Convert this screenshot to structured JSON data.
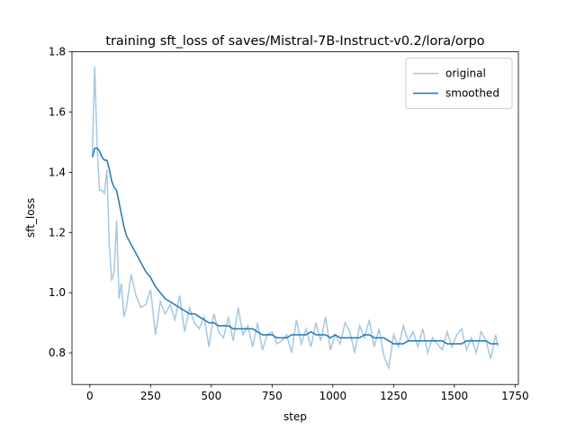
{
  "chart_data": {
    "type": "line",
    "title": "training sft_loss of saves/Mistral-7B-Instruct-v0.2/lora/orpo",
    "x_label": "step",
    "y_label": "sft_loss",
    "x": [
      10,
      20,
      30,
      40,
      50,
      60,
      70,
      80,
      90,
      100,
      110,
      120,
      130,
      140,
      150,
      170,
      190,
      210,
      230,
      250,
      270,
      290,
      310,
      330,
      350,
      370,
      390,
      410,
      430,
      450,
      470,
      490,
      510,
      530,
      550,
      570,
      590,
      610,
      630,
      650,
      670,
      690,
      710,
      730,
      750,
      770,
      790,
      810,
      830,
      850,
      870,
      890,
      910,
      930,
      950,
      970,
      990,
      1010,
      1030,
      1050,
      1070,
      1090,
      1110,
      1130,
      1150,
      1170,
      1190,
      1210,
      1230,
      1250,
      1270,
      1290,
      1310,
      1330,
      1350,
      1370,
      1390,
      1410,
      1430,
      1450,
      1470,
      1490,
      1510,
      1530,
      1550,
      1570,
      1590,
      1610,
      1630,
      1650,
      1670,
      1680
    ],
    "series": [
      {
        "name": "original",
        "color": "#a5c8e1",
        "values": [
          1.46,
          1.75,
          1.48,
          1.34,
          1.34,
          1.33,
          1.41,
          1.16,
          1.04,
          1.07,
          1.24,
          0.98,
          1.03,
          0.92,
          0.95,
          1.06,
          0.99,
          0.95,
          0.96,
          1.01,
          0.86,
          0.97,
          0.93,
          0.96,
          0.91,
          0.99,
          0.87,
          0.95,
          0.9,
          0.88,
          0.92,
          0.82,
          0.93,
          0.87,
          0.85,
          0.92,
          0.84,
          0.95,
          0.86,
          0.89,
          0.82,
          0.9,
          0.81,
          0.86,
          0.87,
          0.83,
          0.84,
          0.86,
          0.8,
          0.91,
          0.83,
          0.88,
          0.82,
          0.9,
          0.84,
          0.92,
          0.81,
          0.86,
          0.83,
          0.9,
          0.87,
          0.8,
          0.89,
          0.85,
          0.91,
          0.82,
          0.88,
          0.79,
          0.75,
          0.86,
          0.82,
          0.89,
          0.84,
          0.87,
          0.82,
          0.88,
          0.8,
          0.85,
          0.83,
          0.81,
          0.87,
          0.82,
          0.86,
          0.88,
          0.81,
          0.85,
          0.8,
          0.87,
          0.84,
          0.78,
          0.86,
          0.82
        ]
      },
      {
        "name": "smoothed",
        "color": "#1f77b4",
        "values": [
          1.45,
          1.48,
          1.48,
          1.47,
          1.45,
          1.44,
          1.44,
          1.41,
          1.37,
          1.35,
          1.34,
          1.3,
          1.26,
          1.22,
          1.19,
          1.16,
          1.13,
          1.1,
          1.07,
          1.05,
          1.02,
          1.0,
          0.98,
          0.97,
          0.96,
          0.95,
          0.94,
          0.93,
          0.93,
          0.92,
          0.91,
          0.9,
          0.9,
          0.89,
          0.89,
          0.89,
          0.88,
          0.88,
          0.88,
          0.88,
          0.88,
          0.87,
          0.86,
          0.86,
          0.86,
          0.85,
          0.85,
          0.85,
          0.86,
          0.86,
          0.86,
          0.86,
          0.87,
          0.86,
          0.86,
          0.86,
          0.85,
          0.86,
          0.85,
          0.85,
          0.85,
          0.85,
          0.85,
          0.86,
          0.86,
          0.85,
          0.85,
          0.85,
          0.84,
          0.83,
          0.83,
          0.83,
          0.84,
          0.84,
          0.84,
          0.84,
          0.84,
          0.84,
          0.84,
          0.84,
          0.83,
          0.83,
          0.83,
          0.83,
          0.84,
          0.84,
          0.84,
          0.84,
          0.84,
          0.83,
          0.83,
          0.83
        ]
      }
    ],
    "xlim": [
      -73.5,
      1763.5
    ],
    "ylim": [
      0.695,
      1.8
    ],
    "xticks": [
      0,
      250,
      500,
      750,
      1000,
      1250,
      1500,
      1750
    ],
    "yticks": [
      0.8,
      {
        "value": 1,
        "label": "1.0"
      },
      1.2,
      1.4,
      1.6,
      1.8
    ],
    "grid": false,
    "legend": "upper right"
  }
}
